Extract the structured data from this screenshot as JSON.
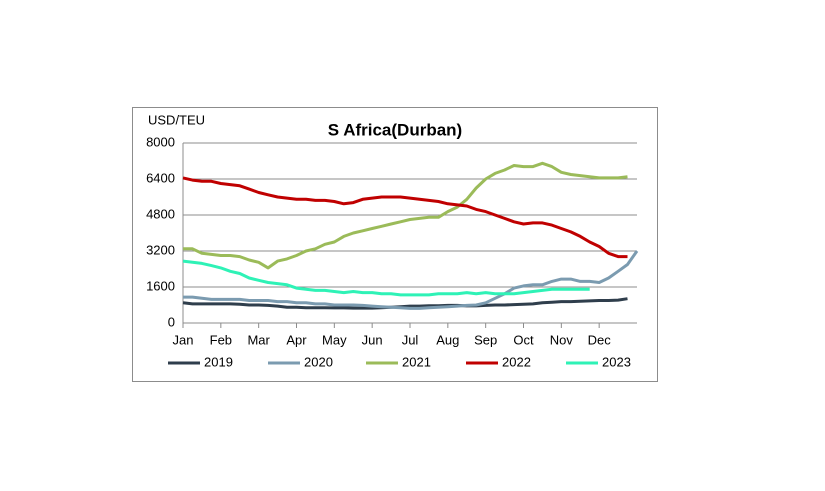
{
  "chart_data": {
    "type": "line",
    "title": "S Africa(Durban)",
    "y_label": "USD/TEU",
    "categories": [
      "Jan",
      null,
      null,
      null,
      "Feb",
      null,
      null,
      null,
      "Mar",
      null,
      null,
      null,
      "Apr",
      null,
      null,
      null,
      "May",
      null,
      null,
      null,
      "Jun",
      null,
      null,
      null,
      "Jul",
      null,
      null,
      null,
      "Aug",
      null,
      null,
      null,
      "Sep",
      null,
      null,
      null,
      "Oct",
      null,
      null,
      null,
      "Nov",
      null,
      null,
      null,
      "Dec",
      null,
      null,
      null,
      null
    ],
    "ylim": [
      0,
      8000
    ],
    "yticks": [
      0,
      1600,
      3200,
      4800,
      6400,
      8000
    ],
    "grid": true,
    "legend": "bottom",
    "series": [
      {
        "name": "2019",
        "color": "#2f3e4c",
        "values": [
          900,
          850,
          850,
          850,
          850,
          850,
          830,
          800,
          800,
          780,
          750,
          700,
          700,
          680,
          680,
          680,
          670,
          670,
          660,
          660,
          660,
          680,
          700,
          720,
          750,
          750,
          770,
          770,
          780,
          780,
          760,
          760,
          780,
          800,
          800,
          820,
          830,
          850,
          900,
          920,
          950,
          950,
          970,
          980,
          1000,
          1000,
          1020,
          1080,
          null
        ]
      },
      {
        "name": "2020",
        "color": "#7b9bb0",
        "values": [
          1150,
          1150,
          1100,
          1050,
          1050,
          1050,
          1050,
          1000,
          1000,
          1000,
          950,
          950,
          900,
          900,
          850,
          850,
          800,
          800,
          800,
          780,
          750,
          720,
          700,
          680,
          650,
          650,
          680,
          700,
          720,
          750,
          780,
          800,
          900,
          1100,
          1300,
          1550,
          1650,
          1700,
          1700,
          1850,
          1950,
          1950,
          1850,
          1850,
          1800,
          2000,
          2300,
          2600,
          3200
        ]
      },
      {
        "name": "2021",
        "color": "#9bbb59",
        "values": [
          3300,
          3300,
          3100,
          3050,
          3000,
          3000,
          2950,
          2800,
          2700,
          2450,
          2750,
          2850,
          3000,
          3200,
          3300,
          3500,
          3600,
          3850,
          4000,
          4100,
          4200,
          4300,
          4400,
          4500,
          4600,
          4650,
          4700,
          4700,
          4950,
          5150,
          5500,
          6000,
          6400,
          6650,
          6800,
          7000,
          6950,
          6950,
          7100,
          6950,
          6700,
          6600,
          6550,
          6500,
          6450,
          6450,
          6450,
          6500,
          null
        ]
      },
      {
        "name": "2022",
        "color": "#c00000",
        "values": [
          6450,
          6350,
          6300,
          6300,
          6200,
          6150,
          6100,
          5950,
          5800,
          5700,
          5600,
          5550,
          5500,
          5500,
          5450,
          5450,
          5400,
          5300,
          5350,
          5500,
          5550,
          5600,
          5600,
          5600,
          5550,
          5500,
          5450,
          5400,
          5300,
          5250,
          5200,
          5050,
          4950,
          4800,
          4650,
          4500,
          4400,
          4450,
          4450,
          4350,
          4200,
          4050,
          3850,
          3600,
          3400,
          3100,
          2950,
          2950,
          null
        ]
      },
      {
        "name": "2023",
        "color": "#2ef2b6",
        "values": [
          2750,
          2700,
          2650,
          2550,
          2450,
          2300,
          2200,
          2000,
          1900,
          1800,
          1750,
          1700,
          1550,
          1500,
          1450,
          1450,
          1400,
          1350,
          1400,
          1350,
          1350,
          1300,
          1300,
          1250,
          1250,
          1250,
          1250,
          1300,
          1300,
          1300,
          1350,
          1300,
          1350,
          1300,
          1300,
          1300,
          1350,
          1400,
          1450,
          1500,
          1500,
          1500,
          1500,
          1500,
          null,
          null,
          null,
          null,
          null
        ]
      }
    ]
  }
}
